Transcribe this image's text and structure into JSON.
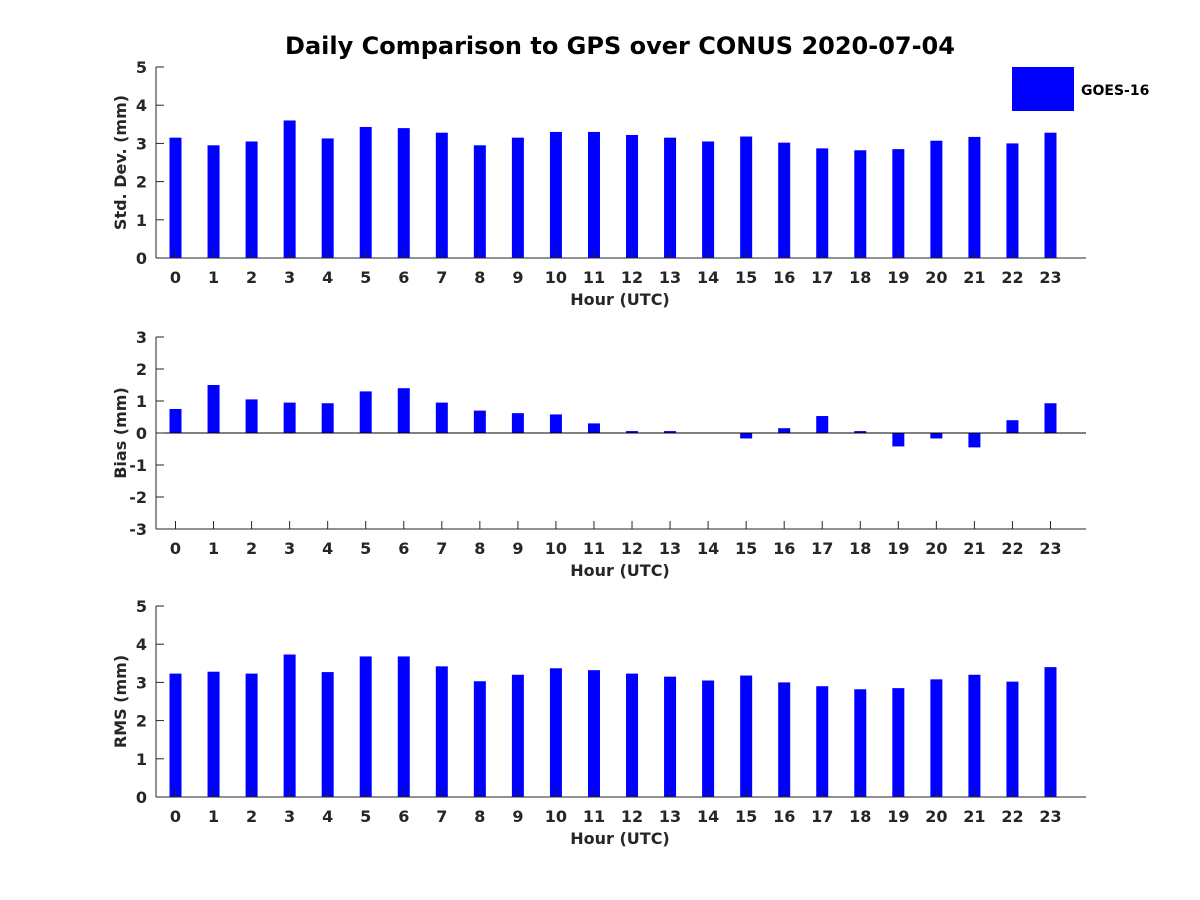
{
  "chart_data": {
    "title": "Daily Comparison to GPS over CONUS 2020-07-04",
    "legend": {
      "label": "GOES-16",
      "color": "#0000ff",
      "placement": "top-right"
    },
    "panels": [
      {
        "type": "bar",
        "xlabel": "Hour (UTC)",
        "ylabel": "Std. Dev. (mm)",
        "ylim": [
          0,
          5
        ],
        "yticks": [
          0,
          1,
          2,
          3,
          4,
          5
        ],
        "categories": [
          "0",
          "1",
          "2",
          "3",
          "4",
          "5",
          "6",
          "7",
          "8",
          "9",
          "10",
          "11",
          "12",
          "13",
          "14",
          "15",
          "16",
          "17",
          "18",
          "19",
          "20",
          "21",
          "22",
          "23"
        ],
        "values": [
          3.15,
          2.95,
          3.05,
          3.6,
          3.13,
          3.43,
          3.4,
          3.28,
          2.95,
          3.15,
          3.3,
          3.3,
          3.22,
          3.15,
          3.05,
          3.18,
          3.02,
          2.87,
          2.82,
          2.85,
          3.07,
          3.17,
          3.0,
          3.28
        ]
      },
      {
        "type": "bar",
        "xlabel": "Hour (UTC)",
        "ylabel": "Bias (mm)",
        "ylim": [
          -3,
          3
        ],
        "yticks": [
          -3,
          -2,
          -1,
          0,
          1,
          2,
          3
        ],
        "categories": [
          "0",
          "1",
          "2",
          "3",
          "4",
          "5",
          "6",
          "7",
          "8",
          "9",
          "10",
          "11",
          "12",
          "13",
          "14",
          "15",
          "16",
          "17",
          "18",
          "19",
          "20",
          "21",
          "22",
          "23"
        ],
        "values": [
          0.75,
          1.5,
          1.05,
          0.95,
          0.93,
          1.3,
          1.4,
          0.95,
          0.7,
          0.62,
          0.58,
          0.3,
          0.06,
          0.06,
          0.0,
          -0.17,
          0.15,
          0.53,
          0.06,
          -0.42,
          -0.17,
          -0.45,
          0.4,
          0.93
        ]
      },
      {
        "type": "bar",
        "xlabel": "Hour (UTC)",
        "ylabel": "RMS (mm)",
        "ylim": [
          0,
          5
        ],
        "yticks": [
          0,
          1,
          2,
          3,
          4,
          5
        ],
        "categories": [
          "0",
          "1",
          "2",
          "3",
          "4",
          "5",
          "6",
          "7",
          "8",
          "9",
          "10",
          "11",
          "12",
          "13",
          "14",
          "15",
          "16",
          "17",
          "18",
          "19",
          "20",
          "21",
          "22",
          "23"
        ],
        "values": [
          3.23,
          3.28,
          3.23,
          3.73,
          3.27,
          3.68,
          3.68,
          3.42,
          3.03,
          3.2,
          3.37,
          3.32,
          3.23,
          3.15,
          3.05,
          3.18,
          3.0,
          2.9,
          2.82,
          2.85,
          3.08,
          3.2,
          3.02,
          3.4
        ]
      }
    ]
  }
}
